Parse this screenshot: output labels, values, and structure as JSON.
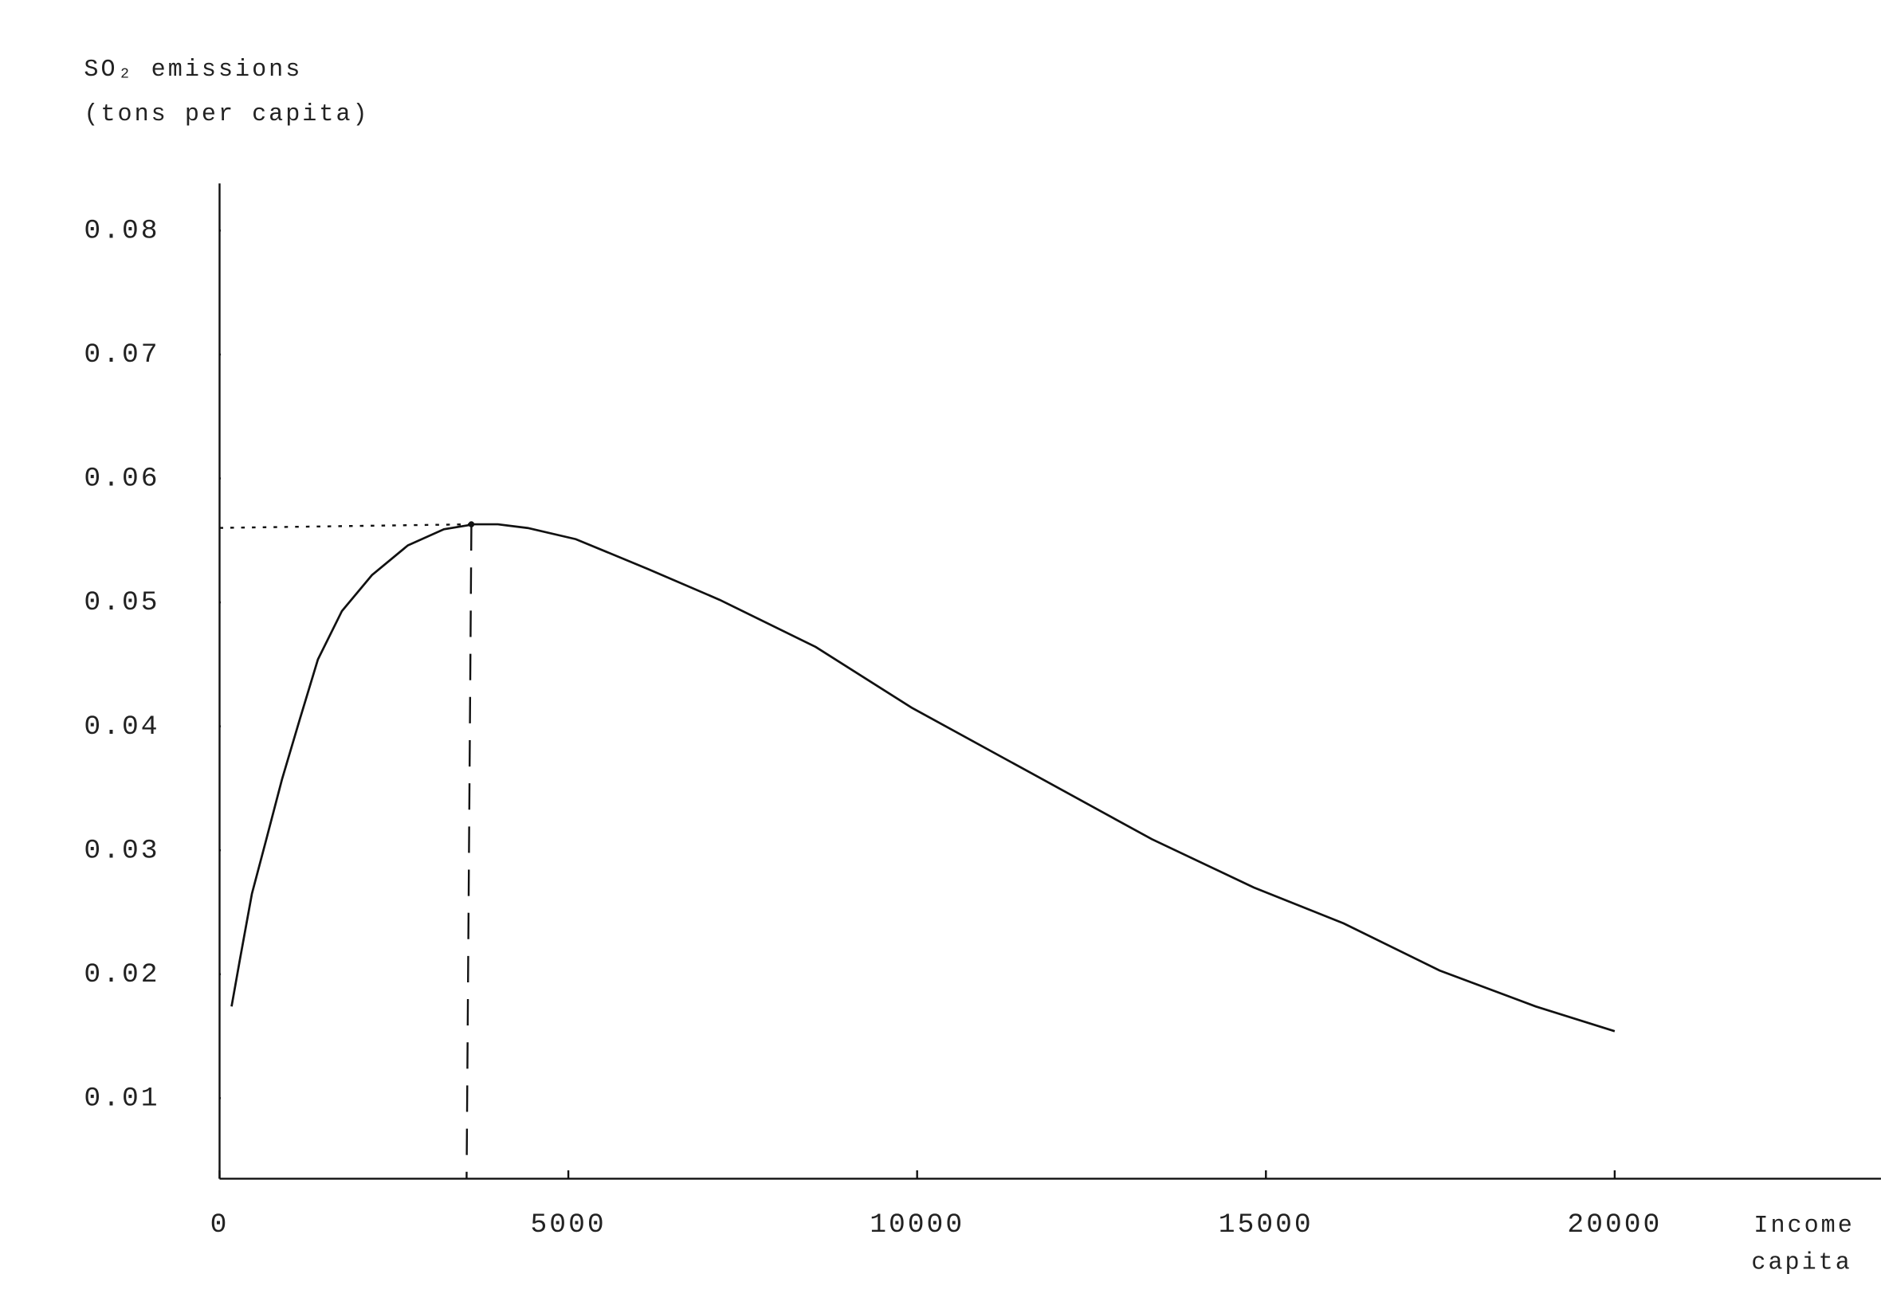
{
  "chart_data": {
    "type": "line",
    "y_label_lines": [
      "SO₂ emissions",
      "(tons per capita)"
    ],
    "x_label_lines": [
      "Income",
      "capita"
    ],
    "x": [
      172,
      292,
      464,
      671,
      894,
      1152,
      1410,
      1754,
      2184,
      2700,
      3216,
      3646,
      3990,
      4419,
      5107,
      6139,
      7171,
      8547,
      9923,
      11643,
      13363,
      14825,
      16115,
      17490,
      18866,
      20000
    ],
    "series": [
      {
        "color": "#111111",
        "values": [
          0.0174,
          0.0212,
          0.0265,
          0.0309,
          0.0357,
          0.0406,
          0.0454,
          0.0493,
          0.0522,
          0.0546,
          0.0559,
          0.0563,
          0.0563,
          0.056,
          0.0551,
          0.0527,
          0.0502,
          0.0464,
          0.0415,
          0.0362,
          0.0309,
          0.027,
          0.0241,
          0.0203,
          0.0174,
          0.0154
        ]
      }
    ],
    "peak": {
      "x": 3610,
      "y": 0.0563
    },
    "xlim": [
      0,
      23817
    ],
    "ylim": [
      0.0035,
      0.0838
    ],
    "xticks": [
      0,
      5000,
      10000,
      15000,
      20000
    ],
    "yticks": [
      0.01,
      0.02,
      0.03,
      0.04,
      0.05,
      0.06,
      0.07,
      0.08
    ]
  }
}
